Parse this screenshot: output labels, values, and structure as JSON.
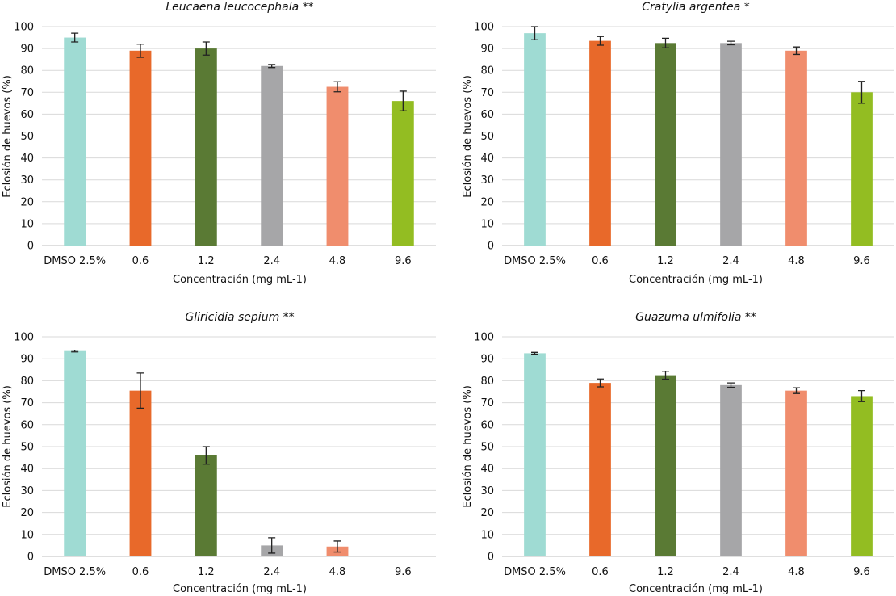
{
  "figure": {
    "panels": [
      {
        "title": "Leucaena leucocephala **",
        "xlabel": "Concentración (mg mL-1)",
        "ylabel": "Eclosión de huevos (%)"
      },
      {
        "title": "Cratylia argentea *",
        "xlabel": "Concentración (mg mL-1)",
        "ylabel": "Eclosión de huevos (%)"
      },
      {
        "title": "Gliricidia sepium **",
        "xlabel": "Concentración (mg mL-1)",
        "ylabel": "Eclosión de huevos (%)"
      },
      {
        "title": "Guazuma ulmifolia **",
        "xlabel": "Concentración (mg mL-1)",
        "ylabel": "Eclosión de huevos (%)"
      }
    ]
  },
  "chart_data": [
    {
      "type": "bar",
      "title": "Leucaena leucocephala **",
      "xlabel": "Concentración (mg mL-1)",
      "ylabel": "Eclosión de huevos (%)",
      "categories": [
        "DMSO 2.5%",
        "0.6",
        "1.2",
        "2.4",
        "4.8",
        "9.6"
      ],
      "values": [
        95,
        89,
        90,
        82,
        72.5,
        66
      ],
      "errors": [
        2,
        3,
        3,
        0.7,
        2.3,
        4.5
      ],
      "colors": [
        "#9fdbd3",
        "#e8692a",
        "#5a7a34",
        "#a6a6a8",
        "#f08d6d",
        "#93bd22"
      ],
      "ylim": [
        0,
        100
      ],
      "yticks": [
        0,
        10,
        20,
        30,
        40,
        50,
        60,
        70,
        80,
        90,
        100
      ],
      "grid": true
    },
    {
      "type": "bar",
      "title": "Cratylia argentea *",
      "xlabel": "Concentración (mg mL-1)",
      "ylabel": "Eclosión de huevos (%)",
      "categories": [
        "DMSO 2.5%",
        "0.6",
        "1.2",
        "2.4",
        "4.8",
        "9.6"
      ],
      "values": [
        97,
        93.5,
        92.5,
        92.5,
        89,
        70
      ],
      "errors": [
        3,
        2,
        2.2,
        0.8,
        1.7,
        5
      ],
      "colors": [
        "#9fdbd3",
        "#e8692a",
        "#5a7a34",
        "#a6a6a8",
        "#f08d6d",
        "#93bd22"
      ],
      "ylim": [
        0,
        100
      ],
      "yticks": [
        0,
        10,
        20,
        30,
        40,
        50,
        60,
        70,
        80,
        90,
        100
      ],
      "grid": true
    },
    {
      "type": "bar",
      "title": "Gliricidia sepium **",
      "xlabel": "Concentración (mg mL-1)",
      "ylabel": "Eclosión de huevos (%)",
      "categories": [
        "DMSO 2.5%",
        "0.6",
        "1.2",
        "2.4",
        "4.8",
        "9.6"
      ],
      "values": [
        93.5,
        75.5,
        46,
        5,
        4.5,
        0
      ],
      "errors": [
        0.4,
        8,
        4,
        3.5,
        2.5,
        0
      ],
      "colors": [
        "#9fdbd3",
        "#e8692a",
        "#5a7a34",
        "#a6a6a8",
        "#f08d6d",
        "#93bd22"
      ],
      "ylim": [
        0,
        100
      ],
      "yticks": [
        0,
        10,
        20,
        30,
        40,
        50,
        60,
        70,
        80,
        90,
        100
      ],
      "grid": true
    },
    {
      "type": "bar",
      "title": "Guazuma ulmifolia **",
      "xlabel": "Concentración (mg mL-1)",
      "ylabel": "Eclosión de huevos (%)",
      "categories": [
        "DMSO 2.5%",
        "0.6",
        "1.2",
        "2.4",
        "4.8",
        "9.6"
      ],
      "values": [
        92.5,
        79,
        82.5,
        78,
        75.5,
        73
      ],
      "errors": [
        0.4,
        1.8,
        1.8,
        1,
        1.3,
        2.5
      ],
      "colors": [
        "#9fdbd3",
        "#e8692a",
        "#5a7a34",
        "#a6a6a8",
        "#f08d6d",
        "#93bd22"
      ],
      "ylim": [
        0,
        100
      ],
      "yticks": [
        0,
        10,
        20,
        30,
        40,
        50,
        60,
        70,
        80,
        90,
        100
      ],
      "grid": true
    }
  ]
}
